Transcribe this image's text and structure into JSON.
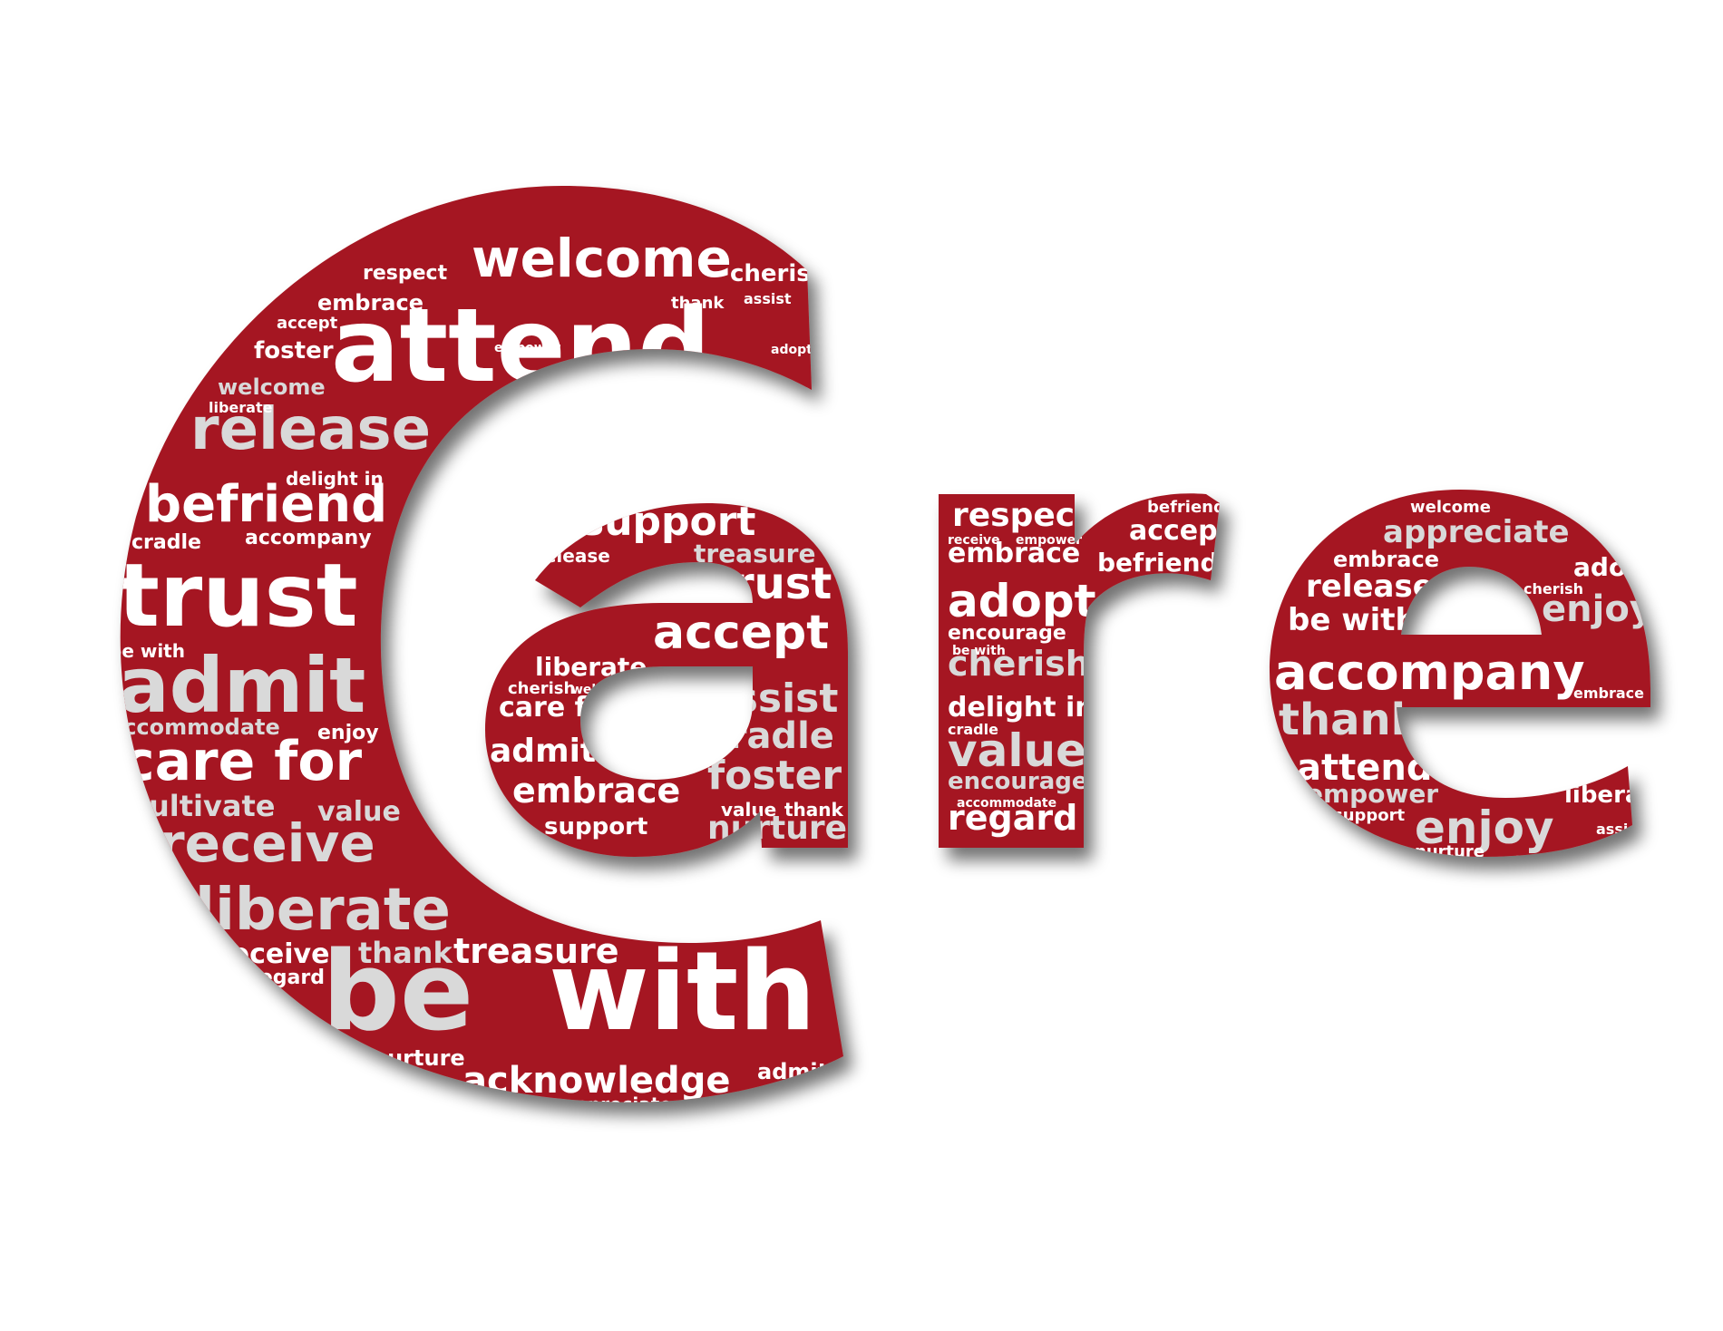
{
  "colors": {
    "background": "#ffffff",
    "letter_fill": "#a51820",
    "word_white": "#ffffff",
    "word_light": "#d9d9d9"
  },
  "letters": [
    {
      "char": "C",
      "words": [
        "attend",
        "welcome",
        "release",
        "befriend",
        "trust",
        "admit",
        "care for",
        "receive",
        "liberate",
        "be",
        "with",
        "acknowledge",
        "treasure",
        "cherish",
        "embrace",
        "foster",
        "respect",
        "accept",
        "accompany",
        "cradle",
        "accommodate",
        "cultivate",
        "value",
        "thank",
        "regard",
        "receive",
        "nurture",
        "appreciate",
        "admit",
        "be with",
        "enjoy",
        "assist",
        "adopt",
        "support",
        "empower",
        "delight in",
        "liberate",
        "welcome",
        "thank"
      ]
    },
    {
      "char": "a",
      "words": [
        "support",
        "empower",
        "treasure",
        "trust",
        "release",
        "accept",
        "assist",
        "liberate",
        "care for",
        "cradle",
        "admit",
        "foster",
        "embrace",
        "nurture",
        "support",
        "cherish",
        "welcome",
        "value",
        "thank",
        "attend"
      ]
    },
    {
      "char": "r",
      "words": [
        "respect",
        "befriend",
        "accept",
        "embrace",
        "befriend",
        "adopt",
        "cultivate",
        "encourage",
        "cherish",
        "delight in",
        "value",
        "encourage",
        "regard",
        "empower",
        "receive",
        "be with",
        "cradle",
        "accommodate"
      ]
    },
    {
      "char": "e",
      "words": [
        "welcome",
        "appreciate",
        "embrace",
        "adopt",
        "release",
        "enjoy",
        "be with",
        "accompany",
        "thank",
        "attend",
        "empower",
        "liberate",
        "enjoy",
        "support",
        "nurture",
        "attend",
        "cherish",
        "embrace",
        "assist"
      ]
    }
  ]
}
